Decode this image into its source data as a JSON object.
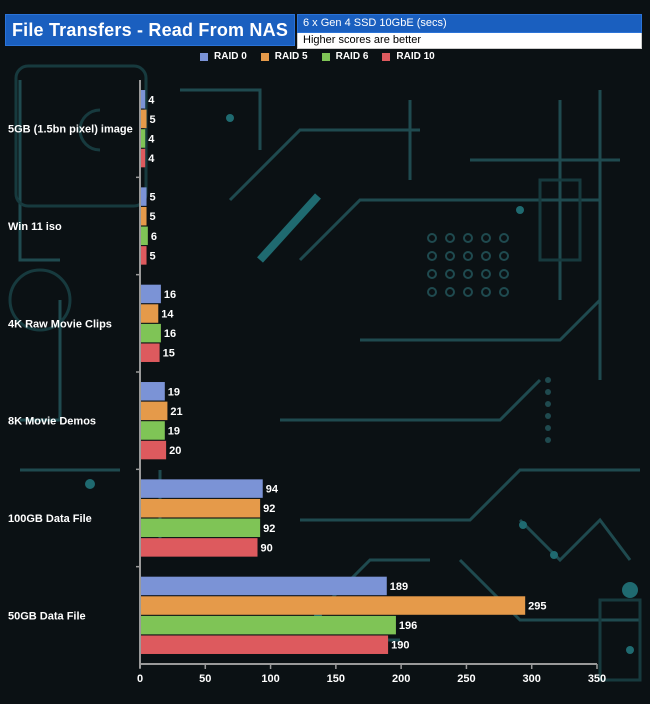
{
  "header": {
    "title": "File Transfers - Read From NAS",
    "subtitle_line1": "6 x Gen 4 SSD 10GbE (secs)",
    "subtitle_line2": "Higher scores are better"
  },
  "chart_data": {
    "type": "bar",
    "orientation": "horizontal",
    "title": "File Transfers - Read From NAS",
    "categories": [
      "5GB (1.5bn pixel) image",
      "Win 11 iso",
      "4K Raw Movie Clips",
      "8K Movie Demos",
      "100GB  Data File",
      "50GB Data File"
    ],
    "series": [
      {
        "name": "RAID 0",
        "color": "#7b93d6",
        "values": [
          4,
          5,
          16,
          19,
          94,
          189
        ]
      },
      {
        "name": "RAID 5",
        "color": "#e59a4a",
        "values": [
          5,
          5,
          14,
          21,
          92,
          295
        ]
      },
      {
        "name": "RAID 6",
        "color": "#7fc456",
        "values": [
          4,
          6,
          16,
          19,
          92,
          196
        ]
      },
      {
        "name": "RAID 10",
        "color": "#dd5a5e",
        "values": [
          4,
          5,
          15,
          20,
          90,
          190
        ]
      }
    ],
    "xlim": [
      0,
      350
    ],
    "xticks": [
      0,
      50,
      100,
      150,
      200,
      250,
      300,
      350
    ],
    "legend_position": "top",
    "grid": false
  }
}
